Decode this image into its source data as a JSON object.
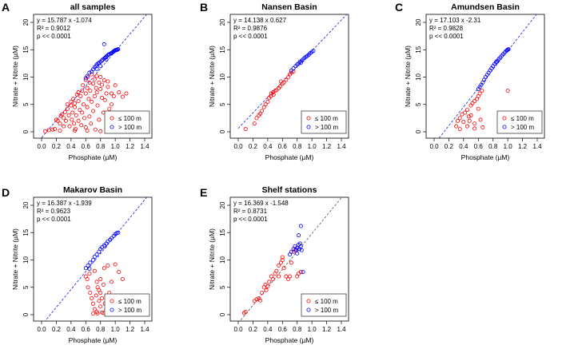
{
  "colors": {
    "shallow": "#ff0000",
    "deep": "#0000ff",
    "fit_line": "#3333dd",
    "fit_line_shelf": "#666666"
  },
  "axes": {
    "xlabel": "Phosphate (µM)",
    "ylabel": "Nitrate + Nitrite (µM)",
    "xticks": [
      "0.0",
      "0.2",
      "0.4",
      "0.6",
      "0.8",
      "1.0",
      "1.2",
      "1.4"
    ],
    "yticks": [
      "0",
      "5",
      "10",
      "15",
      "20"
    ],
    "xlim": [
      0,
      1.4
    ],
    "ylim": [
      0,
      20
    ]
  },
  "legend": {
    "shallow_label": "≤ 100 m",
    "deep_label": "> 100 m"
  },
  "chart_data": [
    {
      "letter": "A",
      "type": "scatter",
      "title": "all samples",
      "equation": "y = 15.787 x  -1.074",
      "r2": "R² = 0.9012",
      "p": "p << 0.0001",
      "slope": 15.787,
      "intercept": -1.074,
      "line_style": "blue",
      "shallow": [
        [
          0.05,
          0.1
        ],
        [
          0.1,
          0.3
        ],
        [
          0.15,
          0.4
        ],
        [
          0.18,
          0.5
        ],
        [
          0.2,
          2.2
        ],
        [
          0.22,
          2.0
        ],
        [
          0.25,
          1.5
        ],
        [
          0.26,
          2.9
        ],
        [
          0.28,
          3.2
        ],
        [
          0.3,
          1.0
        ],
        [
          0.3,
          2.5
        ],
        [
          0.32,
          3.6
        ],
        [
          0.33,
          2.0
        ],
        [
          0.35,
          5.0
        ],
        [
          0.35,
          4.2
        ],
        [
          0.37,
          3.0
        ],
        [
          0.38,
          1.0
        ],
        [
          0.4,
          4.8
        ],
        [
          0.4,
          5.5
        ],
        [
          0.41,
          2.2
        ],
        [
          0.42,
          3.5
        ],
        [
          0.43,
          6.0
        ],
        [
          0.44,
          1.5
        ],
        [
          0.45,
          4.5
        ],
        [
          0.45,
          5.2
        ],
        [
          0.46,
          0.5
        ],
        [
          0.47,
          3.0
        ],
        [
          0.48,
          6.8
        ],
        [
          0.5,
          5.6
        ],
        [
          0.5,
          2.0
        ],
        [
          0.5,
          7.2
        ],
        [
          0.52,
          4.0
        ],
        [
          0.53,
          6.5
        ],
        [
          0.54,
          1.2
        ],
        [
          0.55,
          7.5
        ],
        [
          0.55,
          3.5
        ],
        [
          0.56,
          8.5
        ],
        [
          0.57,
          5.0
        ],
        [
          0.58,
          2.5
        ],
        [
          0.6,
          7.0
        ],
        [
          0.6,
          9.5
        ],
        [
          0.6,
          0.8
        ],
        [
          0.62,
          8.0
        ],
        [
          0.62,
          4.5
        ],
        [
          0.63,
          10.0
        ],
        [
          0.64,
          6.0
        ],
        [
          0.65,
          2.8
        ],
        [
          0.65,
          9.0
        ],
        [
          0.66,
          7.5
        ],
        [
          0.67,
          1.5
        ],
        [
          0.68,
          10.5
        ],
        [
          0.68,
          5.5
        ],
        [
          0.7,
          8.8
        ],
        [
          0.7,
          3.8
        ],
        [
          0.72,
          9.6
        ],
        [
          0.72,
          6.5
        ],
        [
          0.73,
          0.4
        ],
        [
          0.74,
          8.0
        ],
        [
          0.75,
          7.2
        ],
        [
          0.75,
          10.2
        ],
        [
          0.76,
          4.8
        ],
        [
          0.78,
          9.0
        ],
        [
          0.78,
          2.2
        ],
        [
          0.8,
          7.8
        ],
        [
          0.8,
          10.0
        ],
        [
          0.82,
          6.2
        ],
        [
          0.82,
          8.6
        ],
        [
          0.84,
          3.5
        ],
        [
          0.85,
          9.4
        ],
        [
          0.86,
          5.8
        ],
        [
          0.88,
          7.0
        ],
        [
          0.88,
          0.6
        ],
        [
          0.9,
          8.2
        ],
        [
          0.9,
          9.2
        ],
        [
          0.92,
          4.2
        ],
        [
          0.95,
          7.0
        ],
        [
          0.95,
          5.0
        ],
        [
          0.98,
          6.5
        ],
        [
          1.0,
          8.5
        ],
        [
          1.0,
          1.8
        ],
        [
          1.05,
          7.2
        ],
        [
          1.05,
          2.6
        ],
        [
          1.1,
          6.4
        ],
        [
          1.15,
          7.0
        ],
        [
          0.25,
          0.2
        ],
        [
          0.45,
          0.2
        ],
        [
          0.62,
          0.2
        ],
        [
          0.8,
          0.1
        ],
        [
          0.95,
          0.4
        ]
      ],
      "deep": [
        [
          0.6,
          9.8
        ],
        [
          0.62,
          10.2
        ],
        [
          0.65,
          10.8
        ],
        [
          0.68,
          11.0
        ],
        [
          0.7,
          11.4
        ],
        [
          0.72,
          11.8
        ],
        [
          0.74,
          12.0
        ],
        [
          0.75,
          12.3
        ],
        [
          0.77,
          12.5
        ],
        [
          0.78,
          12.6
        ],
        [
          0.8,
          12.8
        ],
        [
          0.82,
          13.0
        ],
        [
          0.83,
          13.2
        ],
        [
          0.85,
          13.4
        ],
        [
          0.86,
          13.5
        ],
        [
          0.87,
          13.6
        ],
        [
          0.88,
          13.8
        ],
        [
          0.9,
          14.0
        ],
        [
          0.91,
          14.1
        ],
        [
          0.92,
          14.2
        ],
        [
          0.94,
          14.3
        ],
        [
          0.95,
          14.4
        ],
        [
          0.96,
          14.5
        ],
        [
          0.97,
          14.6
        ],
        [
          0.98,
          14.7
        ],
        [
          0.99,
          14.8
        ],
        [
          1.0,
          14.9
        ],
        [
          1.01,
          14.9
        ],
        [
          1.02,
          15.0
        ],
        [
          1.03,
          15.0
        ],
        [
          1.04,
          15.1
        ],
        [
          0.85,
          16.0
        ],
        [
          0.8,
          12.0
        ],
        [
          0.75,
          11.5
        ],
        [
          0.88,
          13.2
        ]
      ]
    },
    {
      "letter": "B",
      "type": "scatter",
      "title": "Nansen Basin",
      "equation": "y = 14.138 x  0.627",
      "r2": "R² = 0.9876",
      "p": "p << 0.0001",
      "slope": 14.138,
      "intercept": 0.627,
      "line_style": "blue",
      "shallow": [
        [
          0.1,
          0.5
        ],
        [
          0.22,
          1.5
        ],
        [
          0.25,
          2.5
        ],
        [
          0.28,
          3.0
        ],
        [
          0.3,
          3.3
        ],
        [
          0.32,
          3.8
        ],
        [
          0.35,
          4.5
        ],
        [
          0.37,
          5.0
        ],
        [
          0.4,
          5.5
        ],
        [
          0.42,
          6.2
        ],
        [
          0.44,
          6.5
        ],
        [
          0.45,
          7.0
        ],
        [
          0.47,
          7.2
        ],
        [
          0.5,
          7.5
        ],
        [
          0.52,
          7.6
        ],
        [
          0.55,
          8.0
        ],
        [
          0.57,
          8.3
        ],
        [
          0.6,
          8.8
        ],
        [
          0.62,
          9.0
        ],
        [
          0.65,
          9.5
        ],
        [
          0.68,
          10.0
        ],
        [
          0.7,
          10.5
        ],
        [
          0.72,
          10.8
        ],
        [
          0.75,
          11.0
        ],
        [
          0.48,
          6.8
        ],
        [
          0.58,
          9.2
        ]
      ],
      "deep": [
        [
          0.72,
          11.2
        ],
        [
          0.75,
          11.6
        ],
        [
          0.78,
          12.0
        ],
        [
          0.8,
          12.3
        ],
        [
          0.82,
          12.5
        ],
        [
          0.84,
          12.8
        ],
        [
          0.86,
          13.0
        ],
        [
          0.88,
          13.2
        ],
        [
          0.9,
          13.5
        ],
        [
          0.92,
          13.7
        ],
        [
          0.94,
          13.9
        ],
        [
          0.96,
          14.1
        ],
        [
          0.98,
          14.4
        ],
        [
          1.0,
          14.6
        ],
        [
          1.02,
          14.8
        ],
        [
          0.85,
          12.6
        ]
      ]
    },
    {
      "letter": "C",
      "type": "scatter",
      "title": "Amundsen Basin",
      "equation": "y = 17.103 x  -2.31",
      "r2": "R² = 0.9828",
      "p": "p << 0.0001",
      "slope": 17.103,
      "intercept": -2.31,
      "line_style": "blue",
      "shallow": [
        [
          0.3,
          1.0
        ],
        [
          0.32,
          2.0
        ],
        [
          0.35,
          2.5
        ],
        [
          0.38,
          3.2
        ],
        [
          0.4,
          1.8
        ],
        [
          0.42,
          3.5
        ],
        [
          0.45,
          4.0
        ],
        [
          0.47,
          2.8
        ],
        [
          0.5,
          4.8
        ],
        [
          0.5,
          3.0
        ],
        [
          0.52,
          5.2
        ],
        [
          0.55,
          5.6
        ],
        [
          0.55,
          1.5
        ],
        [
          0.58,
          6.0
        ],
        [
          0.6,
          6.5
        ],
        [
          0.6,
          4.2
        ],
        [
          0.62,
          7.0
        ],
        [
          0.63,
          2.2
        ],
        [
          0.65,
          7.5
        ],
        [
          0.35,
          0.5
        ],
        [
          0.45,
          1.0
        ],
        [
          0.55,
          0.6
        ],
        [
          0.66,
          0.8
        ],
        [
          1.0,
          7.5
        ],
        [
          0.48,
          2.0
        ]
      ],
      "deep": [
        [
          0.6,
          7.8
        ],
        [
          0.62,
          8.2
        ],
        [
          0.64,
          8.6
        ],
        [
          0.66,
          9.0
        ],
        [
          0.68,
          9.5
        ],
        [
          0.7,
          10.0
        ],
        [
          0.72,
          10.4
        ],
        [
          0.74,
          10.8
        ],
        [
          0.76,
          11.2
        ],
        [
          0.78,
          11.6
        ],
        [
          0.8,
          12.0
        ],
        [
          0.82,
          12.4
        ],
        [
          0.84,
          12.7
        ],
        [
          0.86,
          13.0
        ],
        [
          0.88,
          13.3
        ],
        [
          0.9,
          13.6
        ],
        [
          0.92,
          13.9
        ],
        [
          0.94,
          14.2
        ],
        [
          0.96,
          14.5
        ],
        [
          0.98,
          14.8
        ],
        [
          1.0,
          15.0
        ],
        [
          1.01,
          15.1
        ],
        [
          0.85,
          12.8
        ],
        [
          0.99,
          14.9
        ]
      ]
    },
    {
      "letter": "D",
      "type": "scatter",
      "title": "Makarov Basin",
      "equation": "y = 16.387 x  -1.939",
      "r2": "R² = 0.9623",
      "p": "p << 0.0001",
      "slope": 16.387,
      "intercept": -1.939,
      "line_style": "blue",
      "shallow": [
        [
          0.6,
          7.0
        ],
        [
          0.62,
          6.5
        ],
        [
          0.63,
          5.0
        ],
        [
          0.65,
          7.5
        ],
        [
          0.66,
          4.0
        ],
        [
          0.68,
          3.0
        ],
        [
          0.7,
          2.0
        ],
        [
          0.72,
          1.0
        ],
        [
          0.72,
          8.0
        ],
        [
          0.74,
          3.5
        ],
        [
          0.75,
          6.0
        ],
        [
          0.75,
          0.5
        ],
        [
          0.76,
          5.0
        ],
        [
          0.78,
          4.5
        ],
        [
          0.78,
          2.5
        ],
        [
          0.8,
          1.5
        ],
        [
          0.8,
          6.5
        ],
        [
          0.82,
          3.0
        ],
        [
          0.82,
          0.4
        ],
        [
          0.84,
          5.5
        ],
        [
          0.85,
          8.5
        ],
        [
          0.86,
          2.0
        ],
        [
          0.88,
          0.8
        ],
        [
          0.9,
          9.0
        ],
        [
          0.92,
          4.0
        ],
        [
          0.95,
          6.0
        ],
        [
          1.0,
          9.2
        ],
        [
          1.05,
          7.8
        ],
        [
          1.1,
          6.5
        ],
        [
          0.7,
          0.2
        ],
        [
          0.76,
          0.2
        ],
        [
          0.84,
          0.3
        ],
        [
          0.8,
          4.0
        ]
      ],
      "deep": [
        [
          0.6,
          8.5
        ],
        [
          0.63,
          9.0
        ],
        [
          0.66,
          9.5
        ],
        [
          0.7,
          10.0
        ],
        [
          0.72,
          10.6
        ],
        [
          0.75,
          11.0
        ],
        [
          0.78,
          11.5
        ],
        [
          0.8,
          12.0
        ],
        [
          0.82,
          12.3
        ],
        [
          0.85,
          12.7
        ],
        [
          0.88,
          13.0
        ],
        [
          0.9,
          13.4
        ],
        [
          0.93,
          13.7
        ],
        [
          0.95,
          14.0
        ],
        [
          0.98,
          14.4
        ],
        [
          1.0,
          14.7
        ],
        [
          1.02,
          14.9
        ],
        [
          1.04,
          15.0
        ],
        [
          0.65,
          8.4
        ],
        [
          0.86,
          12.5
        ]
      ]
    },
    {
      "letter": "E",
      "type": "scatter",
      "title": "Shelf stations",
      "equation": "y = 16.369 x  -1.548",
      "r2": "R² = 0.8731",
      "p": "p << 0.0001",
      "slope": 16.369,
      "intercept": -1.548,
      "line_style": "gray",
      "shallow": [
        [
          0.08,
          0.3
        ],
        [
          0.1,
          0.5
        ],
        [
          0.22,
          2.5
        ],
        [
          0.25,
          2.8
        ],
        [
          0.28,
          3.0
        ],
        [
          0.3,
          2.6
        ],
        [
          0.32,
          4.0
        ],
        [
          0.35,
          5.0
        ],
        [
          0.37,
          5.5
        ],
        [
          0.4,
          5.2
        ],
        [
          0.42,
          6.0
        ],
        [
          0.45,
          7.0
        ],
        [
          0.47,
          6.5
        ],
        [
          0.5,
          7.5
        ],
        [
          0.52,
          8.0
        ],
        [
          0.55,
          9.0
        ],
        [
          0.58,
          9.5
        ],
        [
          0.6,
          10.0
        ],
        [
          0.62,
          8.5
        ],
        [
          0.65,
          7.0
        ],
        [
          0.68,
          6.5
        ],
        [
          0.7,
          7.0
        ],
        [
          0.72,
          9.5
        ],
        [
          0.75,
          11.5
        ],
        [
          0.78,
          12.0
        ],
        [
          0.8,
          7.0
        ],
        [
          0.82,
          7.5
        ],
        [
          0.85,
          7.8
        ],
        [
          0.6,
          10.5
        ],
        [
          0.38,
          4.5
        ],
        [
          0.55,
          7.0
        ]
      ],
      "deep": [
        [
          0.7,
          11.0
        ],
        [
          0.72,
          11.5
        ],
        [
          0.75,
          12.0
        ],
        [
          0.77,
          12.5
        ],
        [
          0.78,
          11.8
        ],
        [
          0.8,
          12.2
        ],
        [
          0.82,
          12.8
        ],
        [
          0.83,
          12.0
        ],
        [
          0.84,
          13.0
        ],
        [
          0.85,
          12.5
        ],
        [
          0.86,
          11.8
        ],
        [
          0.85,
          16.2
        ],
        [
          0.82,
          14.5
        ],
        [
          0.88,
          7.8
        ],
        [
          0.8,
          11.2
        ]
      ]
    }
  ]
}
